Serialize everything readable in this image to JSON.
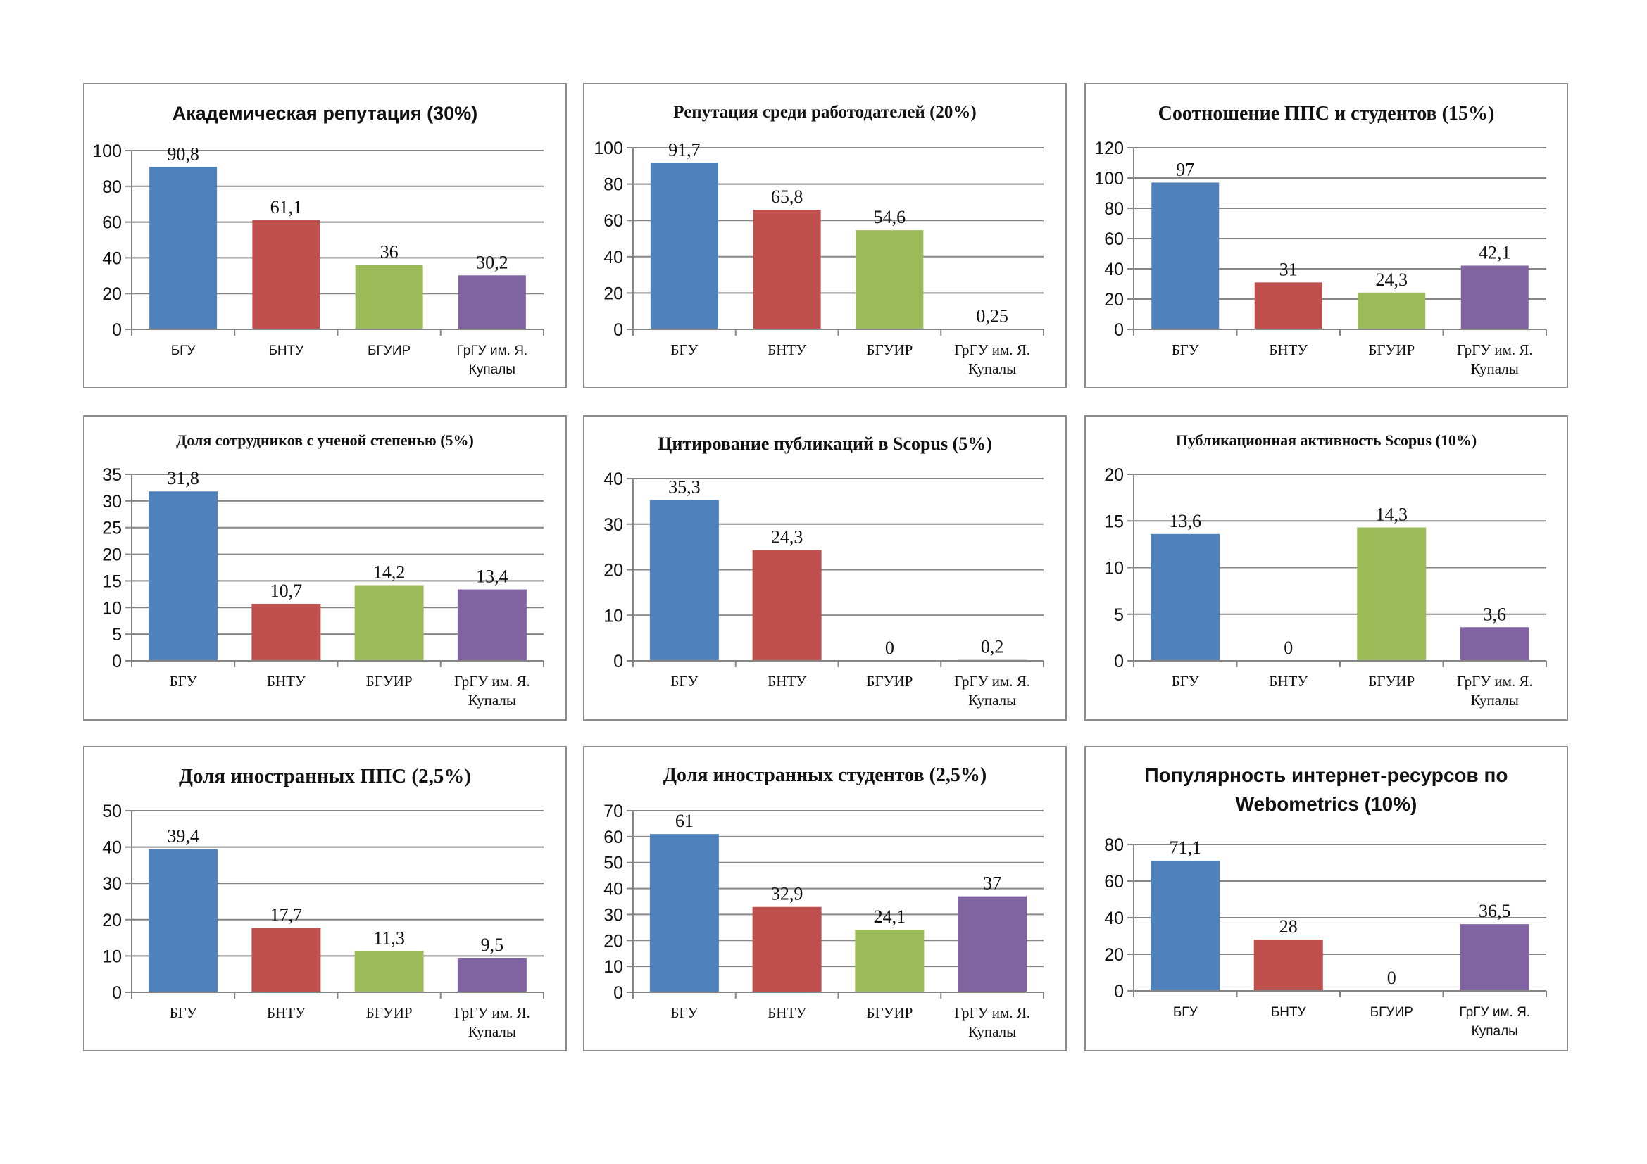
{
  "colors": {
    "series": [
      "#4f81bd",
      "#c0504d",
      "#9bbb59",
      "#8064a2"
    ],
    "grid": "#868686",
    "border": "#8c8c8c"
  },
  "categories": [
    "БГУ",
    "БНТУ",
    "БГУИР",
    "ГрГУ им. Я. Купалы"
  ],
  "chart_data": [
    {
      "type": "bar",
      "title": "Академическая репутация (30%)",
      "categories": [
        "БГУ",
        "БНТУ",
        "БГУИР",
        "ГрГУ им. Я. Купалы"
      ],
      "values": [
        90.8,
        61.1,
        36,
        30.2
      ],
      "labels": [
        "90,8",
        "61,1",
        "36",
        "30,2"
      ],
      "ylim": [
        0,
        100
      ],
      "yticks": [
        0,
        20,
        40,
        60,
        80,
        100
      ],
      "font": "sans"
    },
    {
      "type": "bar",
      "title": "Репутация среди работодателей (20%)",
      "categories": [
        "БГУ",
        "БНТУ",
        "БГУИР",
        "ГрГУ им. Я. Купалы"
      ],
      "values": [
        91.7,
        65.8,
        54.6,
        0.25
      ],
      "labels": [
        "91,7",
        "65,8",
        "54,6",
        "0,25"
      ],
      "ylim": [
        0,
        100
      ],
      "yticks": [
        0,
        20,
        40,
        60,
        80,
        100
      ],
      "font": "serif"
    },
    {
      "type": "bar",
      "title": "Соотношение ППС и студентов (15%)",
      "categories": [
        "БГУ",
        "БНТУ",
        "БГУИР",
        "ГрГУ им. Я. Купалы"
      ],
      "values": [
        97,
        31,
        24.3,
        42.1
      ],
      "labels": [
        "97",
        "31",
        "24,3",
        "42,1"
      ],
      "ylim": [
        0,
        120
      ],
      "yticks": [
        0,
        20,
        40,
        60,
        80,
        100,
        120
      ],
      "font": "serif"
    },
    {
      "type": "bar",
      "title": "Доля сотрудников с ученой степенью (5%)",
      "categories": [
        "БГУ",
        "БНТУ",
        "БГУИР",
        "ГрГУ им. Я. Купалы"
      ],
      "values": [
        31.8,
        10.7,
        14.2,
        13.4
      ],
      "labels": [
        "31,8",
        "10,7",
        "14,2",
        "13,4"
      ],
      "ylim": [
        0,
        35
      ],
      "yticks": [
        0,
        5,
        10,
        15,
        20,
        25,
        30,
        35
      ],
      "font": "serif"
    },
    {
      "type": "bar",
      "title": "Цитирование публикаций в Scopus (5%)",
      "categories": [
        "БГУ",
        "БНТУ",
        "БГУИР",
        "ГрГУ им. Я. Купалы"
      ],
      "values": [
        35.3,
        24.3,
        0,
        0.2
      ],
      "labels": [
        "35,3",
        "24,3",
        "0",
        "0,2"
      ],
      "ylim": [
        0,
        40
      ],
      "yticks": [
        0,
        10,
        20,
        30,
        40
      ],
      "font": "serif"
    },
    {
      "type": "bar",
      "title": "Публикационная активность Scopus (10%)",
      "categories": [
        "БГУ",
        "БНТУ",
        "БГУИР",
        "ГрГУ им. Я. Купалы"
      ],
      "values": [
        13.6,
        0,
        14.3,
        3.6
      ],
      "labels": [
        "13,6",
        "0",
        "14,3",
        "3,6"
      ],
      "ylim": [
        0,
        20
      ],
      "yticks": [
        0,
        5,
        10,
        15,
        20
      ],
      "font": "serif"
    },
    {
      "type": "bar",
      "title": "Доля иностранных ППС (2,5%)",
      "categories": [
        "БГУ",
        "БНТУ",
        "БГУИР",
        "ГрГУ им. Я. Купалы"
      ],
      "values": [
        39.4,
        17.7,
        11.3,
        9.5
      ],
      "labels": [
        "39,4",
        "17,7",
        "11,3",
        "9,5"
      ],
      "ylim": [
        0,
        50
      ],
      "yticks": [
        0,
        10,
        20,
        30,
        40,
        50
      ],
      "font": "serif"
    },
    {
      "type": "bar",
      "title": "Доля иностранных студентов (2,5%)",
      "categories": [
        "БГУ",
        "БНТУ",
        "БГУИР",
        "ГрГУ им. Я. Купалы"
      ],
      "values": [
        61,
        32.9,
        24.1,
        37
      ],
      "labels": [
        "61",
        "32,9",
        "24,1",
        "37"
      ],
      "ylim": [
        0,
        70
      ],
      "yticks": [
        0,
        10,
        20,
        30,
        40,
        50,
        60,
        70
      ],
      "font": "serif"
    },
    {
      "type": "bar",
      "title": "Популярность интернет-ресурсов по Webometrics (10%)",
      "categories": [
        "БГУ",
        "БНТУ",
        "БГУИР",
        "ГрГУ им. Я. Купалы"
      ],
      "values": [
        71.1,
        28,
        0,
        36.5
      ],
      "labels": [
        "71,1",
        "28",
        "0",
        "36,5"
      ],
      "ylim": [
        0,
        80
      ],
      "yticks": [
        0,
        20,
        40,
        60,
        80
      ],
      "font": "sans"
    }
  ]
}
